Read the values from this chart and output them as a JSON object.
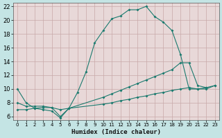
{
  "xlabel": "Humidex (Indice chaleur)",
  "bg_color": "#d0ecec",
  "plot_bg_color": "#e8d8d8",
  "grid_color": "#c8a8a8",
  "line_color": "#1a7a6e",
  "outer_bg": "#c4e4e4",
  "xlim": [
    -0.5,
    23.5
  ],
  "ylim": [
    5.5,
    22.5
  ],
  "xticks": [
    0,
    1,
    2,
    3,
    4,
    5,
    6,
    7,
    8,
    9,
    10,
    11,
    12,
    13,
    14,
    15,
    16,
    17,
    18,
    19,
    20,
    21,
    22,
    23
  ],
  "yticks": [
    6,
    8,
    10,
    12,
    14,
    16,
    18,
    20,
    22
  ],
  "curve1_x": [
    0,
    1,
    2,
    3,
    4,
    5,
    6,
    7,
    8,
    9,
    10,
    11,
    12,
    13,
    14,
    15,
    16,
    17,
    18,
    19,
    20,
    21,
    22
  ],
  "curve1_y": [
    10,
    8,
    7.2,
    7.0,
    6.8,
    5.8,
    7.2,
    9.5,
    12.5,
    16.7,
    18.5,
    20.2,
    20.6,
    21.5,
    21.5,
    22.0,
    20.5,
    19.7,
    18.5,
    15.0,
    10.0,
    10.0,
    10.2
  ],
  "curve2_x": [
    0,
    1,
    2,
    3,
    4,
    5,
    6,
    10,
    11,
    12,
    13,
    14,
    15,
    16,
    17,
    18,
    19,
    20,
    21,
    22,
    23
  ],
  "curve2_y": [
    8.0,
    7.5,
    7.5,
    7.5,
    7.3,
    6.0,
    7.2,
    8.8,
    9.3,
    9.8,
    10.3,
    10.8,
    11.3,
    11.8,
    12.3,
    12.8,
    13.8,
    13.8,
    10.5,
    10.2,
    10.5
  ],
  "curve3_x": [
    0,
    1,
    2,
    3,
    4,
    5,
    6,
    10,
    11,
    12,
    13,
    14,
    15,
    16,
    17,
    18,
    19,
    20,
    21,
    22,
    23
  ],
  "curve3_y": [
    7.0,
    7.0,
    7.2,
    7.3,
    7.3,
    7.0,
    7.2,
    7.8,
    8.0,
    8.3,
    8.5,
    8.8,
    9.0,
    9.3,
    9.5,
    9.8,
    10.0,
    10.2,
    10.0,
    10.0,
    10.5
  ]
}
